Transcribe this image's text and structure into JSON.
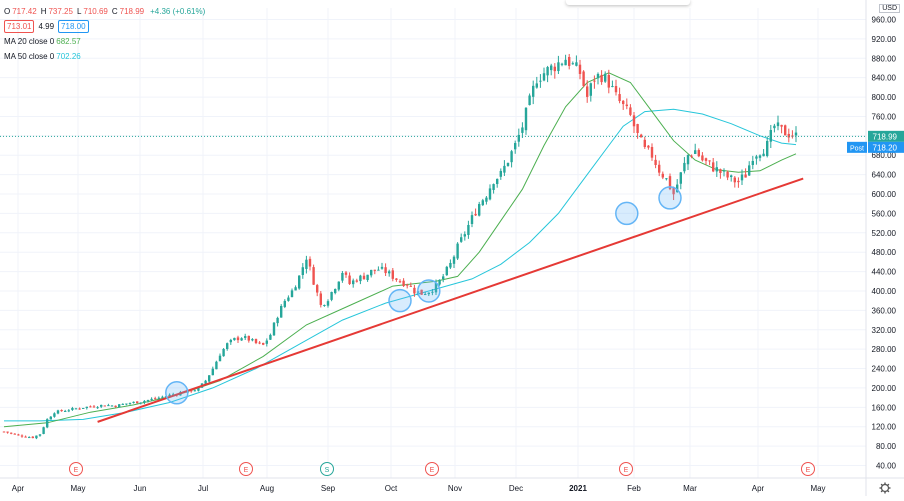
{
  "legend": {
    "open_label": "O",
    "open": "717.42",
    "high_label": "H",
    "high": "737.25",
    "low_label": "L",
    "low": "710.69",
    "close_label": "C",
    "close": "718.99",
    "change": "+4.36 (+0.61%)",
    "bid": "713.01",
    "spread": "4.99",
    "ask": "718.00",
    "ma20_label": "MA 20 close 0",
    "ma20_value": "682.57",
    "ma50_label": "MA 50 close 0",
    "ma50_value": "702.26"
  },
  "currency": "USD",
  "price_labels": {
    "last": "718.99",
    "post_tag": "Post",
    "post": "718.20"
  },
  "colors": {
    "up": "#26a69a",
    "down": "#ef5350",
    "ma20": "#4caf50",
    "ma50": "#26c6da",
    "trendline": "#e53935",
    "circle": "#64b5f6",
    "grid": "#f0f3fa"
  },
  "icons": {
    "settings": "gear-icon"
  },
  "chart_data": {
    "type": "candlestick",
    "y_ticks": [
      "960.00",
      "920.00",
      "880.00",
      "840.00",
      "800.00",
      "760.00",
      "720.00",
      "680.00",
      "640.00",
      "600.00",
      "560.00",
      "520.00",
      "480.00",
      "440.00",
      "400.00",
      "360.00",
      "320.00",
      "280.00",
      "240.00",
      "200.00",
      "160.00",
      "120.00",
      "80.00",
      "40.00"
    ],
    "x_ticks": [
      "Apr",
      "May",
      "Jun",
      "Jul",
      "Aug",
      "Sep",
      "Oct",
      "Nov",
      "Dec",
      "2021",
      "Feb",
      "Mar",
      "Apr",
      "May"
    ],
    "event_markers": [
      {
        "label": "E",
        "month": "May"
      },
      {
        "label": "E",
        "month": "Jul-end"
      },
      {
        "label": "S",
        "month": "Sep"
      },
      {
        "label": "E",
        "month": "Oct-end"
      },
      {
        "label": "E",
        "month": "Jan-end"
      },
      {
        "label": "E",
        "month": "Apr-end"
      }
    ],
    "close_path": [
      [
        0,
        110
      ],
      [
        4,
        102
      ],
      [
        8,
        98
      ],
      [
        10,
        105
      ],
      [
        12,
        135
      ],
      [
        14,
        150
      ],
      [
        18,
        155
      ],
      [
        22,
        160
      ],
      [
        25,
        162
      ],
      [
        28,
        165
      ],
      [
        31,
        163
      ],
      [
        34,
        168
      ],
      [
        38,
        172
      ],
      [
        42,
        178
      ],
      [
        46,
        185
      ],
      [
        50,
        192
      ],
      [
        54,
        198
      ],
      [
        56,
        215
      ],
      [
        58,
        240
      ],
      [
        60,
        270
      ],
      [
        62,
        290
      ],
      [
        64,
        300
      ],
      [
        66,
        305
      ],
      [
        68,
        300
      ],
      [
        70,
        292
      ],
      [
        72,
        288
      ],
      [
        74,
        310
      ],
      [
        76,
        350
      ],
      [
        78,
        380
      ],
      [
        80,
        400
      ],
      [
        82,
        430
      ],
      [
        84,
        470
      ],
      [
        86,
        420
      ],
      [
        88,
        370
      ],
      [
        90,
        385
      ],
      [
        92,
        410
      ],
      [
        94,
        440
      ],
      [
        96,
        415
      ],
      [
        98,
        425
      ],
      [
        100,
        430
      ],
      [
        102,
        440
      ],
      [
        104,
        445
      ],
      [
        106,
        440
      ],
      [
        108,
        430
      ],
      [
        110,
        420
      ],
      [
        112,
        415
      ],
      [
        114,
        400
      ],
      [
        116,
        395
      ],
      [
        118,
        400
      ],
      [
        120,
        410
      ],
      [
        122,
        430
      ],
      [
        124,
        455
      ],
      [
        126,
        490
      ],
      [
        128,
        520
      ],
      [
        130,
        550
      ],
      [
        132,
        580
      ],
      [
        134,
        600
      ],
      [
        136,
        630
      ],
      [
        138,
        640
      ],
      [
        140,
        670
      ],
      [
        142,
        700
      ],
      [
        144,
        740
      ],
      [
        146,
        790
      ],
      [
        148,
        840
      ],
      [
        150,
        850
      ],
      [
        152,
        860
      ],
      [
        154,
        870
      ],
      [
        156,
        880
      ],
      [
        158,
        865
      ],
      [
        160,
        850
      ],
      [
        162,
        800
      ],
      [
        164,
        840
      ],
      [
        166,
        845
      ],
      [
        168,
        830
      ],
      [
        170,
        800
      ],
      [
        172,
        780
      ],
      [
        174,
        760
      ],
      [
        176,
        720
      ],
      [
        178,
        690
      ],
      [
        180,
        680
      ],
      [
        182,
        650
      ],
      [
        184,
        630
      ],
      [
        186,
        600
      ],
      [
        188,
        640
      ],
      [
        190,
        680
      ],
      [
        192,
        690
      ],
      [
        194,
        670
      ],
      [
        196,
        660
      ],
      [
        198,
        650
      ],
      [
        200,
        640
      ],
      [
        202,
        630
      ],
      [
        204,
        625
      ],
      [
        206,
        640
      ],
      [
        208,
        680
      ],
      [
        210,
        690
      ],
      [
        212,
        700
      ],
      [
        214,
        740
      ],
      [
        216,
        730
      ],
      [
        218,
        725
      ],
      [
        220,
        719
      ]
    ],
    "ma20_path": [
      [
        0,
        120
      ],
      [
        12,
        128
      ],
      [
        24,
        150
      ],
      [
        36,
        165
      ],
      [
        48,
        185
      ],
      [
        60,
        215
      ],
      [
        72,
        265
      ],
      [
        84,
        330
      ],
      [
        96,
        370
      ],
      [
        108,
        410
      ],
      [
        120,
        420
      ],
      [
        126,
        430
      ],
      [
        132,
        480
      ],
      [
        138,
        545
      ],
      [
        144,
        610
      ],
      [
        150,
        700
      ],
      [
        156,
        780
      ],
      [
        162,
        830
      ],
      [
        168,
        850
      ],
      [
        174,
        830
      ],
      [
        180,
        770
      ],
      [
        186,
        710
      ],
      [
        192,
        670
      ],
      [
        198,
        650
      ],
      [
        204,
        645
      ],
      [
        210,
        648
      ],
      [
        216,
        670
      ],
      [
        220,
        683
      ]
    ],
    "ma50_path": [
      [
        0,
        132
      ],
      [
        10,
        132
      ],
      [
        22,
        135
      ],
      [
        34,
        150
      ],
      [
        46,
        170
      ],
      [
        58,
        200
      ],
      [
        70,
        240
      ],
      [
        82,
        290
      ],
      [
        94,
        340
      ],
      [
        106,
        375
      ],
      [
        118,
        400
      ],
      [
        130,
        425
      ],
      [
        138,
        455
      ],
      [
        146,
        500
      ],
      [
        154,
        560
      ],
      [
        162,
        640
      ],
      [
        168,
        700
      ],
      [
        172,
        740
      ],
      [
        178,
        770
      ],
      [
        186,
        775
      ],
      [
        194,
        765
      ],
      [
        202,
        745
      ],
      [
        210,
        720
      ],
      [
        216,
        705
      ],
      [
        220,
        702
      ]
    ],
    "trendline": {
      "start": {
        "x_day": 26,
        "y": 130
      },
      "end": {
        "x_day": 222,
        "y": 632
      }
    },
    "touch_points": [
      {
        "x_day": 48,
        "y": 190
      },
      {
        "x_day": 110,
        "y": 380
      },
      {
        "x_day": 118,
        "y": 400
      },
      {
        "x_day": 173,
        "y": 560
      },
      {
        "x_day": 185,
        "y": 592
      }
    ]
  }
}
